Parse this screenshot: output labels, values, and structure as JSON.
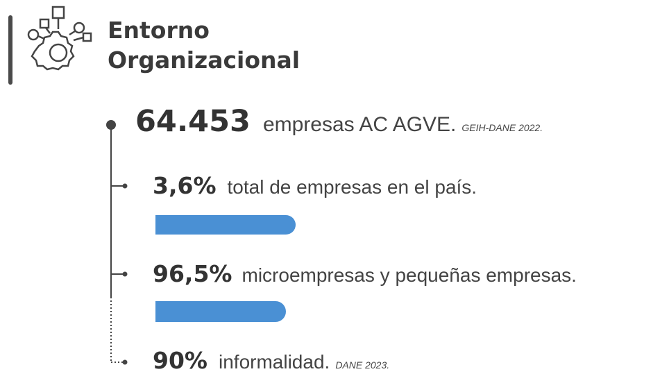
{
  "header": {
    "title": [
      "Entorno",
      "Organizacional"
    ]
  },
  "items": [
    {
      "value": "64.453",
      "text": "empresas AC AGVE.",
      "source": "GEIH-DANE 2022."
    },
    {
      "value": "3,6%",
      "text": "total de empresas en el país."
    },
    {
      "value": "96,5%",
      "text": "microempresas y pequeñas empresas."
    },
    {
      "value": "90%",
      "text": "informalidad.",
      "source": "DANE 2023."
    }
  ]
}
